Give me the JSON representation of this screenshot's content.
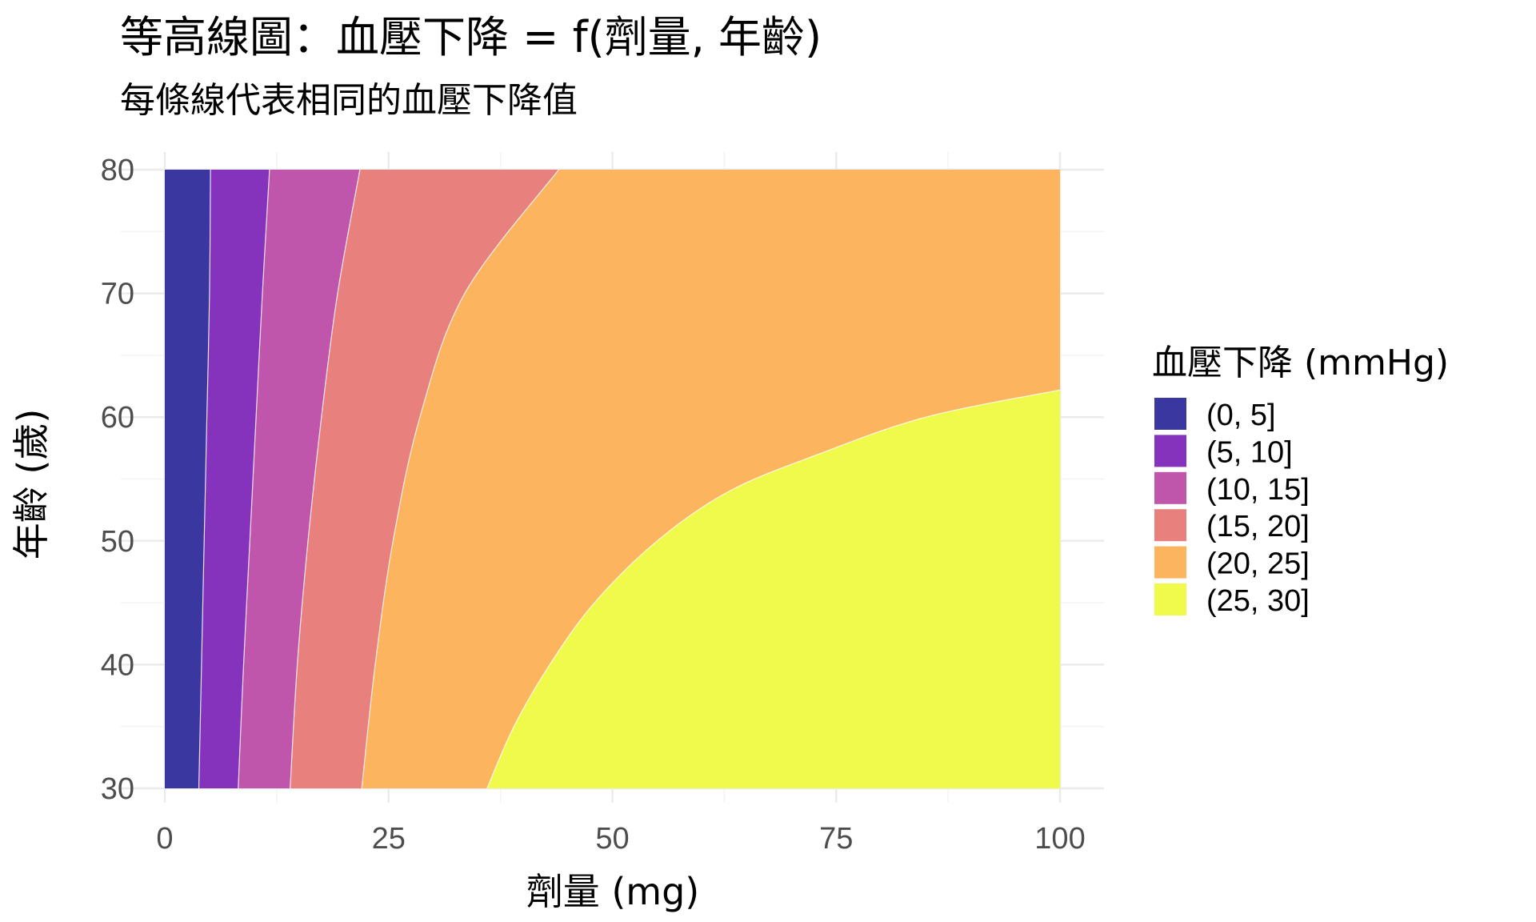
{
  "chart_data": {
    "type": "contour_filled",
    "title": "等高線圖：血壓下降 = f(劑量, 年齡)",
    "subtitle": "每條線代表相同的血壓下降值",
    "xlabel": "劑量 (mg)",
    "ylabel": "年齡 (歲)",
    "xlim": [
      0,
      100
    ],
    "ylim": [
      30,
      80
    ],
    "x_ticks": [
      0,
      25,
      50,
      75,
      100
    ],
    "y_ticks": [
      30,
      40,
      50,
      60,
      70,
      80
    ],
    "grid": true,
    "legend": {
      "title": "血壓下降 (mmHg)",
      "position": "right",
      "entries": [
        {
          "label": "(0, 5]",
          "color": "#3b37a0"
        },
        {
          "label": "(5, 10]",
          "color": "#8532bd"
        },
        {
          "label": "(10, 15]",
          "color": "#c055ac"
        },
        {
          "label": "(15, 20]",
          "color": "#e8807e"
        },
        {
          "label": "(20, 25]",
          "color": "#fcb45f"
        },
        {
          "label": "(25, 30]",
          "color": "#f0fa4a"
        }
      ]
    },
    "contour_boundaries": [
      {
        "level": 5,
        "points": [
          [
            3.8,
            30
          ],
          [
            4.1,
            40
          ],
          [
            4.4,
            50
          ],
          [
            4.7,
            60
          ],
          [
            5.0,
            70
          ],
          [
            5.1,
            80
          ]
        ]
      },
      {
        "level": 10,
        "points": [
          [
            8.2,
            30
          ],
          [
            8.8,
            40
          ],
          [
            9.5,
            50
          ],
          [
            10.2,
            60
          ],
          [
            10.9,
            70
          ],
          [
            11.7,
            80
          ]
        ]
      },
      {
        "level": 15,
        "points": [
          [
            14.0,
            30
          ],
          [
            14.8,
            40
          ],
          [
            16.0,
            50
          ],
          [
            17.5,
            60
          ],
          [
            19.3,
            70
          ],
          [
            21.8,
            80
          ]
        ]
      },
      {
        "level": 20,
        "points": [
          [
            22.0,
            30
          ],
          [
            23.5,
            40
          ],
          [
            25.5,
            50
          ],
          [
            28.5,
            60
          ],
          [
            33.5,
            70
          ],
          [
            44.0,
            80
          ]
        ]
      },
      {
        "level": 25,
        "points": [
          [
            36.0,
            30
          ],
          [
            39.0,
            35
          ],
          [
            43.0,
            40
          ],
          [
            48.0,
            45
          ],
          [
            55.0,
            50
          ],
          [
            63.0,
            54
          ],
          [
            73.0,
            57
          ],
          [
            85.0,
            60
          ],
          [
            100.0,
            62.2
          ]
        ]
      }
    ]
  }
}
